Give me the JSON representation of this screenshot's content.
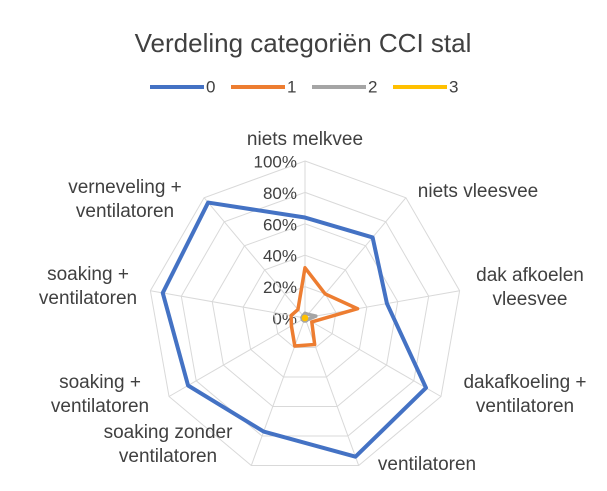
{
  "chart_data": {
    "type": "radar",
    "title": "Verdeling categoriën CCI stal",
    "categories": [
      "niets melkvee",
      "niets vleesvee",
      "dak afkoelen vleesvee",
      "dakafkoeling + ventilatoren",
      "ventilatoren",
      "soaking zonder ventilatoren",
      "soaking + ventilatoren",
      "soaking + ventilatoren",
      "verneveling + ventilatoren"
    ],
    "series": [
      {
        "name": "0",
        "color": "#4472c4",
        "values": [
          64,
          67,
          53,
          89,
          94,
          77,
          86,
          92,
          96
        ]
      },
      {
        "name": "1",
        "color": "#ed7d31",
        "values": [
          32,
          20,
          34,
          5,
          18,
          19,
          10,
          9,
          7
        ]
      },
      {
        "name": "2",
        "color": "#a5a5a5",
        "values": [
          3,
          3,
          7,
          2,
          2,
          2,
          2,
          2,
          2
        ]
      },
      {
        "name": "3",
        "color": "#ffc000",
        "values": [
          1,
          1,
          1,
          1,
          1,
          1,
          1,
          1,
          1
        ]
      }
    ],
    "ylim": [
      0,
      100
    ],
    "yticks": [
      {
        "value": 0,
        "label": "0%"
      },
      {
        "value": 20,
        "label": "20%"
      },
      {
        "value": 40,
        "label": "40%"
      },
      {
        "value": 60,
        "label": "60%"
      },
      {
        "value": 80,
        "label": "80%"
      },
      {
        "value": 100,
        "label": "100%"
      }
    ],
    "grid": true,
    "legend": "top"
  }
}
